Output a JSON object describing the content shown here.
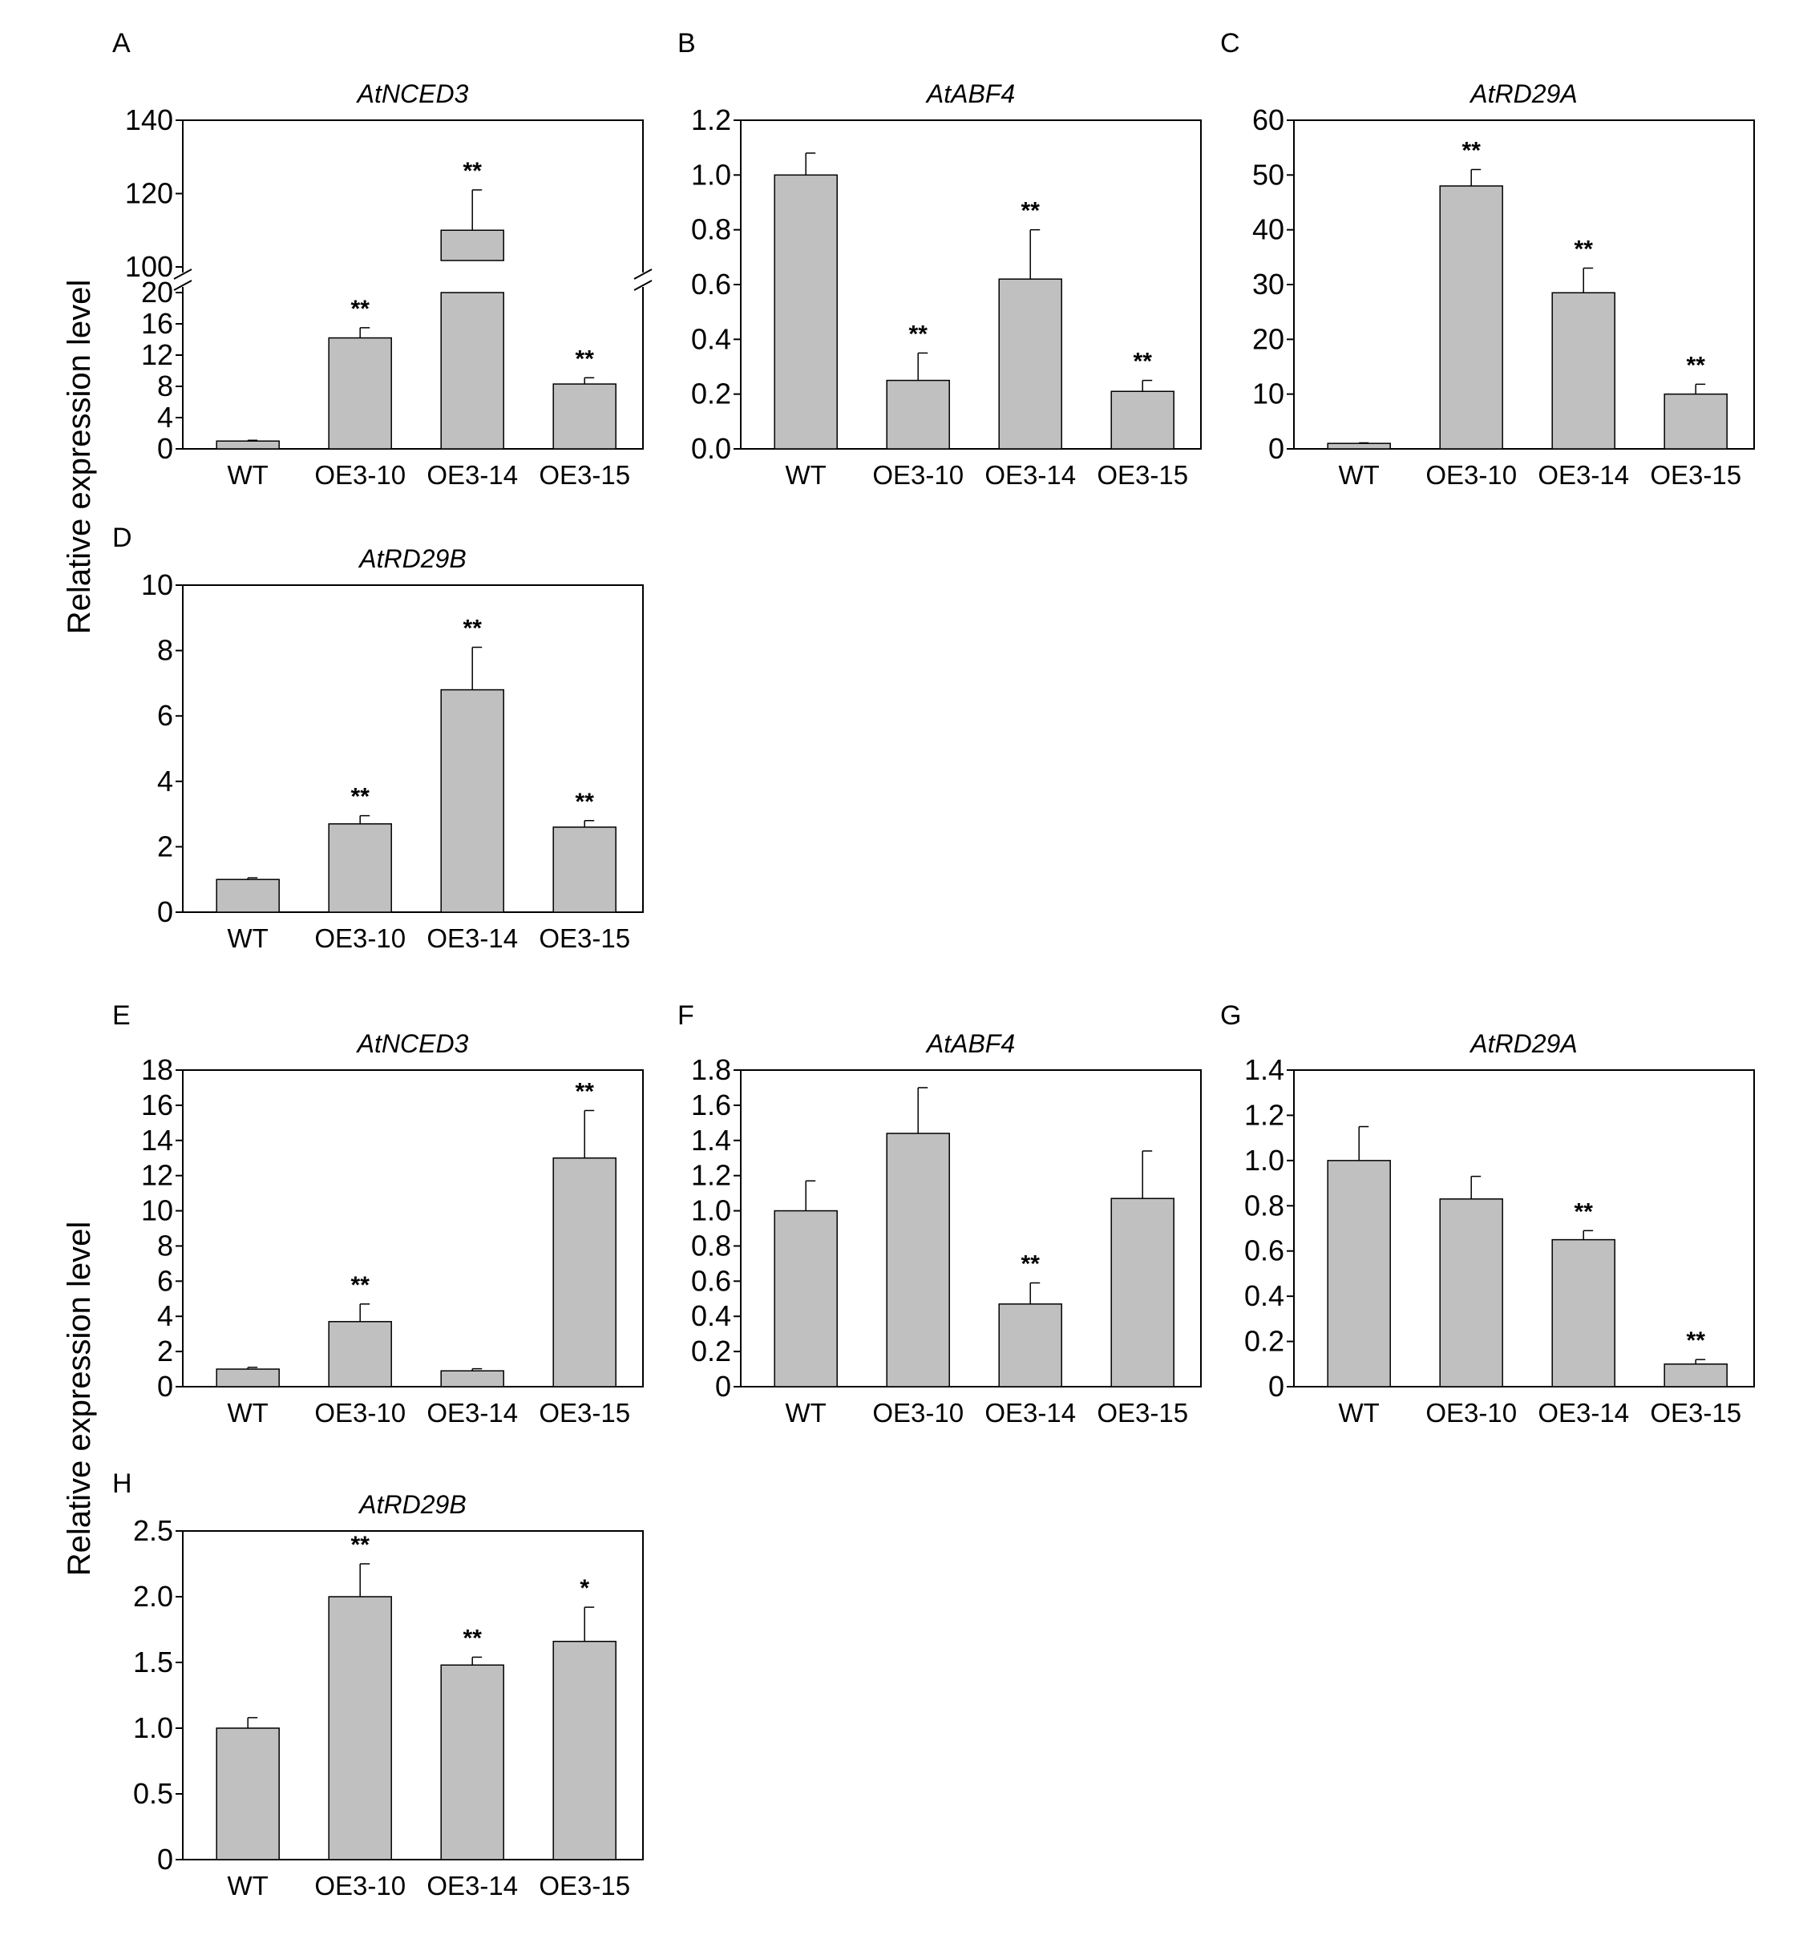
{
  "figure": {
    "ylabels": [
      "Relative expression level",
      "Relative expression level"
    ]
  },
  "chart_data": [
    {
      "panel": "A",
      "type": "bar",
      "title": "AtNCED3",
      "categories": [
        "WT",
        "OE3-10",
        "OE3-14",
        "OE3-15"
      ],
      "values": [
        1,
        14.2,
        110,
        8.3
      ],
      "errors": [
        0.1,
        1.3,
        11,
        0.8
      ],
      "significance": [
        "",
        "**",
        "**",
        "**"
      ],
      "axis_break": {
        "lower": [
          0,
          20
        ],
        "upper": [
          100,
          140
        ]
      },
      "yticks": [
        0,
        4,
        8,
        12,
        16,
        20,
        100,
        120,
        140
      ],
      "ytick_labels": [
        "0",
        "4",
        "8",
        "12",
        "16",
        "20",
        "100",
        "120",
        "140"
      ]
    },
    {
      "panel": "B",
      "type": "bar",
      "title": "AtABF4",
      "categories": [
        "WT",
        "OE3-10",
        "OE3-14",
        "OE3-15"
      ],
      "values": [
        1.0,
        0.25,
        0.62,
        0.21
      ],
      "errors": [
        0.08,
        0.1,
        0.18,
        0.04
      ],
      "significance": [
        "",
        "**",
        "**",
        "**"
      ],
      "ylim": [
        0,
        1.2
      ],
      "yticks": [
        0,
        0.2,
        0.4,
        0.6,
        0.8,
        1.0,
        1.2
      ],
      "ytick_labels": [
        "0.0",
        "0.2",
        "0.4",
        "0.6",
        "0.8",
        "1.0",
        "1.2"
      ]
    },
    {
      "panel": "C",
      "type": "bar",
      "title": "AtRD29A",
      "categories": [
        "WT",
        "OE3-10",
        "OE3-14",
        "OE3-15"
      ],
      "values": [
        1,
        48,
        28.5,
        10
      ],
      "errors": [
        0.1,
        3,
        4.5,
        1.8
      ],
      "significance": [
        "",
        "**",
        "**",
        "**"
      ],
      "ylim": [
        0,
        60
      ],
      "yticks": [
        0,
        10,
        20,
        30,
        40,
        50,
        60
      ],
      "ytick_labels": [
        "0",
        "10",
        "20",
        "30",
        "40",
        "50",
        "60"
      ]
    },
    {
      "panel": "D",
      "type": "bar",
      "title": "AtRD29B",
      "categories": [
        "WT",
        "OE3-10",
        "OE3-14",
        "OE3-15"
      ],
      "values": [
        1.0,
        2.7,
        6.8,
        2.6
      ],
      "errors": [
        0.05,
        0.25,
        1.3,
        0.2
      ],
      "significance": [
        "",
        "**",
        "**",
        "**"
      ],
      "ylim": [
        0,
        10
      ],
      "yticks": [
        0,
        2,
        4,
        6,
        8,
        10
      ],
      "ytick_labels": [
        "0",
        "2",
        "4",
        "6",
        "8",
        "10"
      ]
    },
    {
      "panel": "E",
      "type": "bar",
      "title": "AtNCED3",
      "categories": [
        "WT",
        "OE3-10",
        "OE3-14",
        "OE3-15"
      ],
      "values": [
        1.0,
        3.7,
        0.9,
        13.0
      ],
      "errors": [
        0.1,
        1.0,
        0.12,
        2.7
      ],
      "significance": [
        "",
        "**",
        "",
        "**"
      ],
      "ylim": [
        0,
        18
      ],
      "yticks": [
        0,
        2,
        4,
        6,
        8,
        10,
        12,
        14,
        16,
        18
      ],
      "ytick_labels": [
        "0",
        "2",
        "4",
        "6",
        "8",
        "10",
        "12",
        "14",
        "16",
        "18"
      ]
    },
    {
      "panel": "F",
      "type": "bar",
      "title": "AtABF4",
      "categories": [
        "WT",
        "OE3-10",
        "OE3-14",
        "OE3-15"
      ],
      "values": [
        1.0,
        1.44,
        0.47,
        1.07
      ],
      "errors": [
        0.17,
        0.26,
        0.12,
        0.27
      ],
      "significance": [
        "",
        "",
        "**",
        ""
      ],
      "ylim": [
        0,
        1.8
      ],
      "yticks": [
        0,
        0.2,
        0.4,
        0.6,
        0.8,
        1.0,
        1.2,
        1.4,
        1.6,
        1.8
      ],
      "ytick_labels": [
        "0",
        "0.2",
        "0.4",
        "0.6",
        "0.8",
        "1.0",
        "1.2",
        "1.4",
        "1.6",
        "1.8"
      ]
    },
    {
      "panel": "G",
      "type": "bar",
      "title": "AtRD29A",
      "categories": [
        "WT",
        "OE3-10",
        "OE3-14",
        "OE3-15"
      ],
      "values": [
        1.0,
        0.83,
        0.65,
        0.1
      ],
      "errors": [
        0.15,
        0.1,
        0.04,
        0.02
      ],
      "significance": [
        "",
        "",
        "**",
        "**"
      ],
      "ylim": [
        0,
        1.4
      ],
      "yticks": [
        0,
        0.2,
        0.4,
        0.6,
        0.8,
        1.0,
        1.2,
        1.4
      ],
      "ytick_labels": [
        "0",
        "0.2",
        "0.4",
        "0.6",
        "0.8",
        "1.0",
        "1.2",
        "1.4"
      ]
    },
    {
      "panel": "H",
      "type": "bar",
      "title": "AtRD29B",
      "categories": [
        "WT",
        "OE3-10",
        "OE3-14",
        "OE3-15"
      ],
      "values": [
        1.0,
        2.0,
        1.48,
        1.66
      ],
      "errors": [
        0.08,
        0.25,
        0.06,
        0.26
      ],
      "significance": [
        "",
        "**",
        "**",
        "*"
      ],
      "ylim": [
        0,
        2.5
      ],
      "yticks": [
        0,
        0.5,
        1.0,
        1.5,
        2.0,
        2.5
      ],
      "ytick_labels": [
        "0",
        "0.5",
        "1.0",
        "1.5",
        "2.0",
        "2.5"
      ]
    }
  ]
}
